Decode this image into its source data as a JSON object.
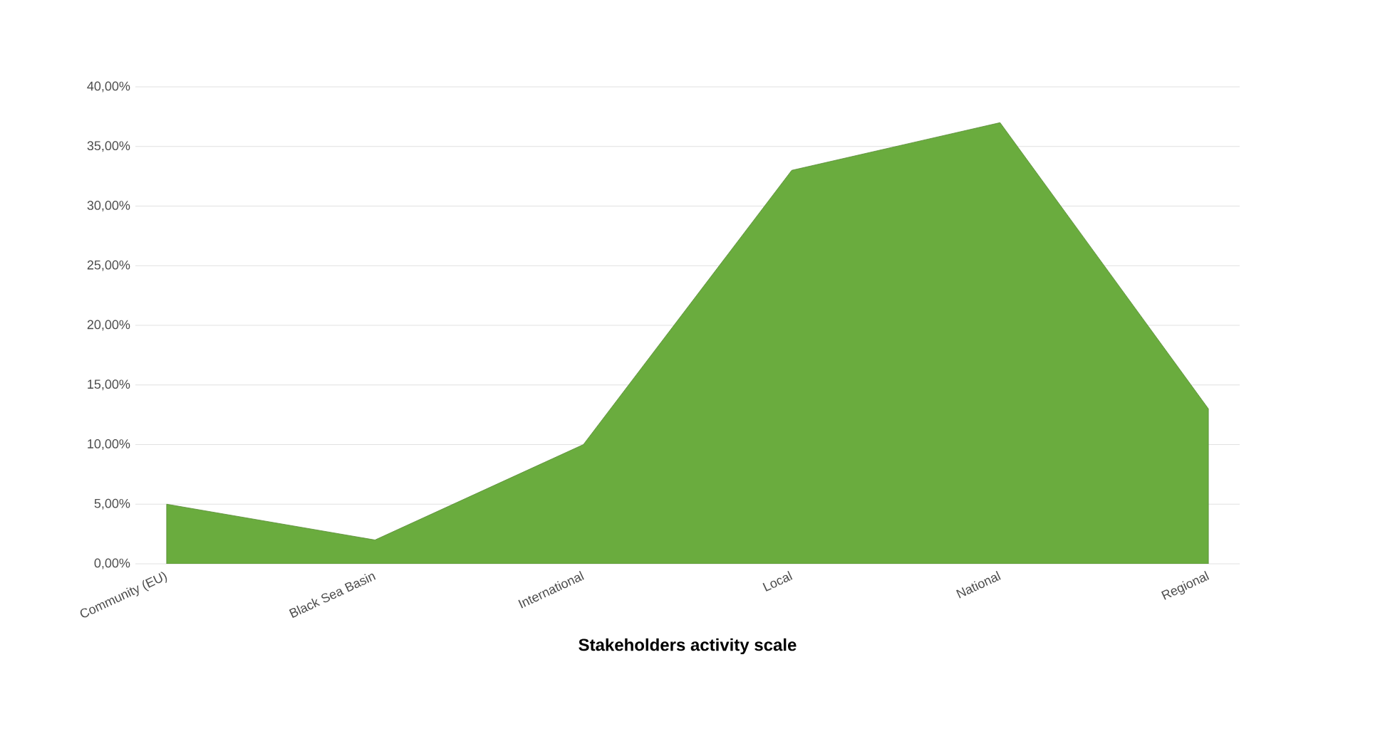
{
  "chart_data": {
    "type": "area",
    "xlabel": "**Stakeholders activity scale**",
    "categories": [
      "Community (EU)",
      "Black Sea Basin",
      "International",
      "Local",
      "National",
      "Regional"
    ],
    "values": [
      5,
      2,
      10,
      33,
      37,
      13
    ],
    "color": "#6aac3e",
    "ylim": [
      0,
      40
    ],
    "yticks": [
      {
        "value": 0,
        "label": "0,00%"
      },
      {
        "value": 5,
        "label": "5,00%"
      },
      {
        "value": 10,
        "label": "10,00%"
      },
      {
        "value": 15,
        "label": "15,00%"
      },
      {
        "value": 20,
        "label": "20,00%"
      },
      {
        "value": 25,
        "label": "25,00%"
      },
      {
        "value": 30,
        "label": "30,00%"
      },
      {
        "value": 35,
        "label": "35,00%"
      },
      {
        "value": 40,
        "label": "40,00%"
      }
    ],
    "grid": "y"
  }
}
